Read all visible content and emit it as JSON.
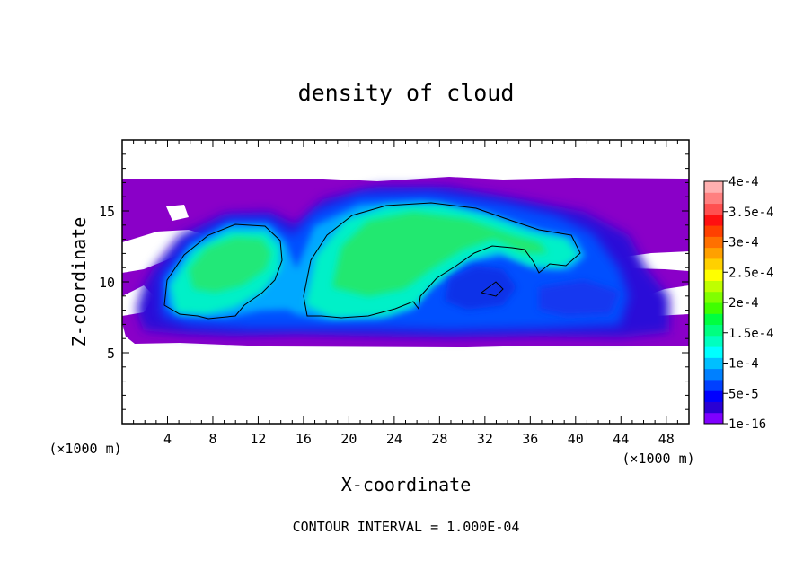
{
  "chart_data": {
    "type": "heatmap",
    "title": "density of cloud",
    "xlabel": "X-coordinate",
    "ylabel": "Z-coordinate",
    "x_units_note": "(×1000 m)",
    "z_units_note": "(×1000 m)",
    "xlim": [
      0,
      50
    ],
    "ylim": [
      0,
      20
    ],
    "x_ticks": [
      4,
      8,
      12,
      16,
      20,
      24,
      28,
      32,
      36,
      40,
      44,
      48
    ],
    "y_ticks": [
      5,
      10,
      15
    ],
    "x_tick_labels": [
      "4",
      "8",
      "12",
      "16",
      "20",
      "24",
      "28",
      "32",
      "36",
      "40",
      "44",
      "48"
    ],
    "y_tick_labels": [
      "5",
      "10",
      "15"
    ],
    "colorbar": {
      "labels": [
        "4e-4",
        "3.5e-4",
        "3e-4",
        "2.5e-4",
        "2e-4",
        "1.5e-4",
        "1e-4",
        "5e-5",
        "1e-16"
      ],
      "label_values": [
        0.0004,
        0.00035,
        0.0003,
        0.00025,
        0.0002,
        0.00015,
        0.0001,
        5e-05,
        1e-16
      ],
      "colors": [
        "#7f00ff",
        "#2a00d4",
        "#0000ff",
        "#0040ff",
        "#0080ff",
        "#00bfff",
        "#00ffff",
        "#00ffbf",
        "#00ff80",
        "#00ff40",
        "#40ff00",
        "#80ff00",
        "#bfff00",
        "#ffff00",
        "#ffd000",
        "#ffa000",
        "#ff7000",
        "#ff4000",
        "#ff1010",
        "#ff5050",
        "#ff8080",
        "#ffb0b0"
      ]
    },
    "contour_interval": "CONTOUR INTERVAL = 1.000E-04",
    "regions": [
      {
        "name": "low-density envelope",
        "value": 1e-16,
        "x_range": [
          0,
          50
        ],
        "z_range": [
          5.5,
          17.2
        ]
      },
      {
        "name": "left cell core",
        "value": 0.00015,
        "x_range": [
          3.5,
          14
        ],
        "z_range": [
          7.4,
          13.5
        ]
      },
      {
        "name": "main cell core",
        "value": 0.00015,
        "x_range": [
          16,
          40
        ],
        "z_range": [
          7.5,
          15.5
        ]
      },
      {
        "name": "embedded 1e-4 patch",
        "value": 0.0001,
        "x_range": [
          31,
          33.5
        ],
        "z_range": [
          9.0,
          10.0
        ]
      }
    ]
  }
}
